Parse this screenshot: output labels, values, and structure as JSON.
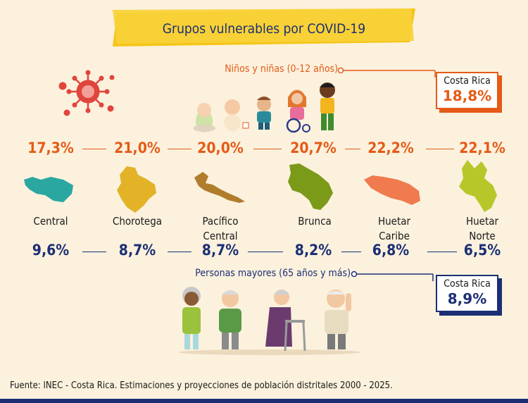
{
  "title": "Grupos vulnerables por COVID-19",
  "children": {
    "label": "Niños y niñas (0-12 años)",
    "country_label": "Costa Rica",
    "country_value": "18,8%"
  },
  "elderly": {
    "label": "Personas mayores (65 años y más)",
    "country_label": "Costa Rica",
    "country_value": "8,9%"
  },
  "regions": [
    {
      "name_line1": "Central",
      "name_line2": "",
      "children_pct": "17,3%",
      "elderly_pct": "9,6%",
      "map_color": "#2aa7a1"
    },
    {
      "name_line1": "Chorotega",
      "name_line2": "",
      "children_pct": "21,0%",
      "elderly_pct": "8,7%",
      "map_color": "#e3b227"
    },
    {
      "name_line1": "Pacífico",
      "name_line2": "Central",
      "children_pct": "20,0%",
      "elderly_pct": "8,7%",
      "map_color": "#b07d2c"
    },
    {
      "name_line1": "Brunca",
      "name_line2": "",
      "children_pct": "20,7%",
      "elderly_pct": "8,2%",
      "map_color": "#7a9a18"
    },
    {
      "name_line1": "Huetar",
      "name_line2": "Caribe",
      "children_pct": "22,2%",
      "elderly_pct": "6,8%",
      "map_color": "#ef7b4f"
    },
    {
      "name_line1": "Huetar",
      "name_line2": "Norte",
      "children_pct": "22,1%",
      "elderly_pct": "6,5%",
      "map_color": "#b7c72a"
    }
  ],
  "colors": {
    "accent_orange": "#e55a17",
    "accent_navy": "#1c2f75",
    "banner_yellow": "#f5c518",
    "background": "#fbf1dd",
    "virus_red": "#e0453c"
  },
  "icons": [
    "virus-icon",
    "children-illustration",
    "elderly-illustration",
    "region-map-icon"
  ],
  "source": "Fuente: INEC - Costa Rica. Estimaciones y proyecciones de población distritales 2000 - 2025."
}
